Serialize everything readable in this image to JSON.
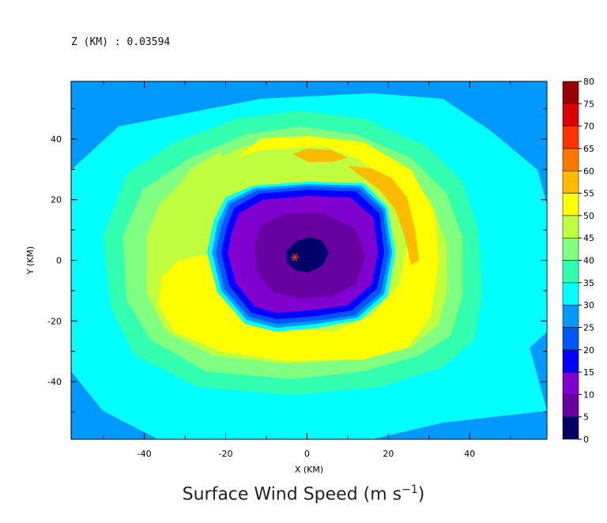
{
  "header": {
    "level_label": "Z (KM) : 0.03594"
  },
  "chart_data": {
    "type": "heatmap",
    "title_main": "Surface Wind Speed (m s",
    "title_exp": "−1",
    "title_end": ")",
    "xlabel": "X (KM)",
    "ylabel": "Y (KM)",
    "xlim": [
      -58,
      59
    ],
    "ylim": [
      -59,
      59
    ],
    "x_ticks": [
      -40,
      -20,
      0,
      20,
      40
    ],
    "y_ticks": [
      -40,
      -20,
      0,
      20,
      40
    ],
    "colorbar": {
      "levels": [
        0,
        5,
        10,
        15,
        20,
        25,
        30,
        35,
        40,
        45,
        50,
        55,
        60,
        65,
        70,
        75,
        80
      ],
      "colors": [
        "#000066",
        "#6600a0",
        "#8000d0",
        "#0000ff",
        "#0055ff",
        "#0099ff",
        "#00ffff",
        "#33ffb0",
        "#80ff80",
        "#c0ff40",
        "#ffff00",
        "#ffbb00",
        "#ff7700",
        "#ff3300",
        "#dd0000",
        "#990000"
      ]
    },
    "center_marker": {
      "x": -3,
      "y": 1
    }
  }
}
